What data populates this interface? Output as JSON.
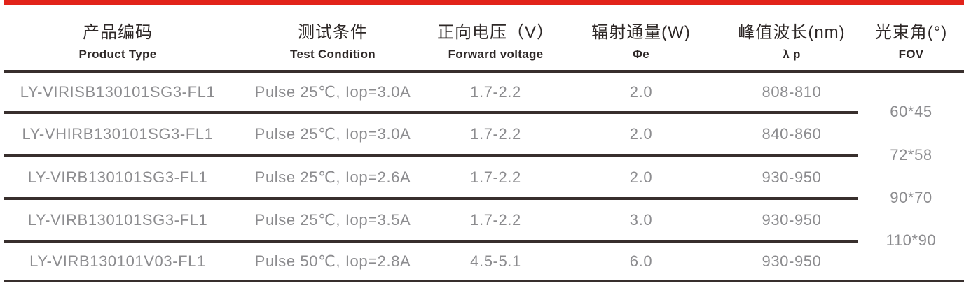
{
  "table": {
    "headers": [
      {
        "zh": "产品编码",
        "en": "Product Type"
      },
      {
        "zh": "测试条件",
        "en": "Test Condition"
      },
      {
        "zh": "正向电压（V）",
        "en": "Forward voltage"
      },
      {
        "zh": "辐射通量(W)",
        "en": "Φe"
      },
      {
        "zh": "峰值波长(nm)",
        "en": "λ p"
      },
      {
        "zh": "光束角(°)",
        "en": "FOV"
      }
    ],
    "rows": [
      {
        "product_type": "LY-VIRISB130101SG3-FL1",
        "test_condition": "Pulse 25℃, Iop=3.0A",
        "forward_voltage": "1.7-2.2",
        "radiant_flux": "2.0",
        "peak_wavelength": "808-810"
      },
      {
        "product_type": "LY-VHIRB130101SG3-FL1",
        "test_condition": "Pulse 25℃, Iop=3.0A",
        "forward_voltage": "1.7-2.2",
        "radiant_flux": "2.0",
        "peak_wavelength": "840-860"
      },
      {
        "product_type": "LY-VIRB130101SG3-FL1",
        "test_condition": "Pulse 25℃, Iop=2.6A",
        "forward_voltage": "1.7-2.2",
        "radiant_flux": "2.0",
        "peak_wavelength": "930-950"
      },
      {
        "product_type": "LY-VIRB130101SG3-FL1",
        "test_condition": "Pulse 25℃, Iop=3.5A",
        "forward_voltage": "1.7-2.2",
        "radiant_flux": "3.0",
        "peak_wavelength": "930-950"
      },
      {
        "product_type": "LY-VIRB130101V03-FL1",
        "test_condition": "Pulse 50℃, Iop=2.8A",
        "forward_voltage": "4.5-5.1",
        "radiant_flux": "6.0",
        "peak_wavelength": "930-950"
      }
    ],
    "fov_values": [
      "60*45",
      "72*58",
      "90*70",
      "110*90"
    ]
  },
  "colors": {
    "accent_red": "#E2231A",
    "rule_dark": "#382F2D",
    "header_text": "#2D2726",
    "data_text": "#8C8C8F"
  }
}
